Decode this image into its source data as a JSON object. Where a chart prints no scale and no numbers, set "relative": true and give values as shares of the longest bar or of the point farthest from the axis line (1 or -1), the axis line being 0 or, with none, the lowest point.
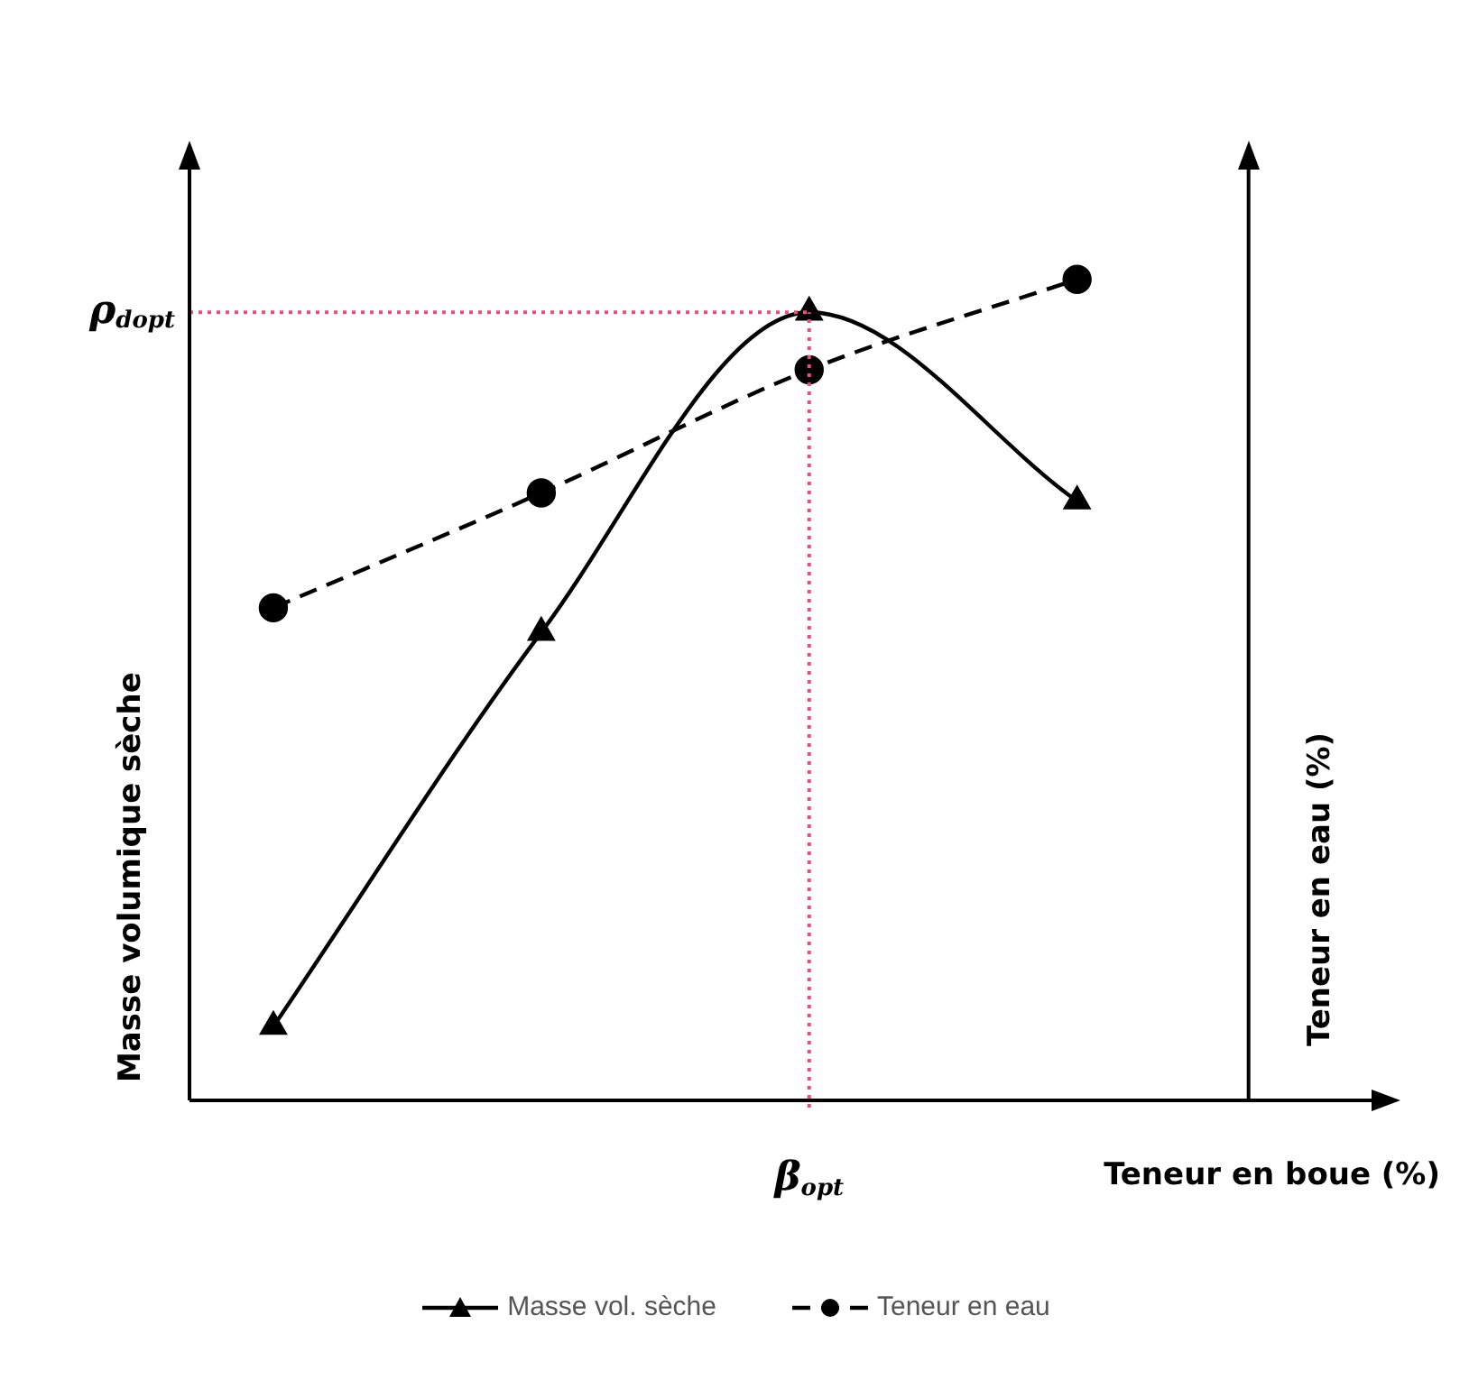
{
  "chart_data": {
    "type": "line",
    "relative": true,
    "xlabel": "Teneur en boue (%)",
    "ylabel": "Masse volumique sèche",
    "y2label": "Teneur en eau (%)",
    "categories": [
      null,
      null,
      null,
      null
    ],
    "series": [
      {
        "name": "Masse vol. sèche",
        "color": "#000000",
        "values": [
          0.09,
          0.57,
          0.96,
          0.73
        ],
        "marker": "triangle",
        "line_style": "solid"
      },
      {
        "name": "Teneur en eau",
        "color": "#000000",
        "values": [
          0.6,
          0.74,
          0.89,
          1
        ],
        "marker": "circle",
        "line_style": "dashed"
      }
    ],
    "ref_lines": [
      {
        "axis": "y",
        "value": 0.96,
        "label": "ρ$_{dopt}$",
        "color": "#e8507a",
        "line_style": "dotted"
      }
    ],
    "annotations": [
      "β$_{opt}$"
    ],
    "legend": "bottom"
  }
}
